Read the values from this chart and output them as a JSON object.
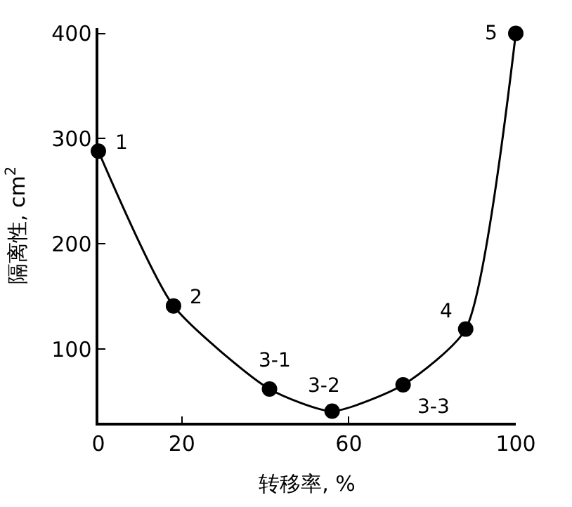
{
  "chart_data": {
    "type": "line",
    "xlabel": "转移率, %",
    "ylabel": "隔离性, cm$^{2}$",
    "x": [
      0,
      18,
      41,
      56,
      73,
      88,
      100
    ],
    "series": [
      {
        "color": "#000000",
        "values": [
          288,
          141,
          62,
          41,
          66,
          119,
          400
        ]
      }
    ],
    "xlim": [
      0,
      100
    ],
    "xticks": [
      0,
      20,
      60,
      100
    ],
    "ylim": [
      30,
      405
    ],
    "yticks": [
      100,
      200,
      300,
      400
    ],
    "legend": false,
    "marker": "circle",
    "line_style": "solid",
    "annotations": [
      {
        "text": "1",
        "x": 0,
        "y": 288
      },
      {
        "text": "2",
        "x": 18,
        "y": 141
      },
      {
        "text": "3-1",
        "x": 41,
        "y": 62
      },
      {
        "text": "3-2",
        "x": 56,
        "y": 41
      },
      {
        "text": "3-3",
        "x": 73,
        "y": 66
      },
      {
        "text": "4",
        "x": 88,
        "y": 119
      },
      {
        "text": "5",
        "x": 100,
        "y": 400
      }
    ]
  }
}
